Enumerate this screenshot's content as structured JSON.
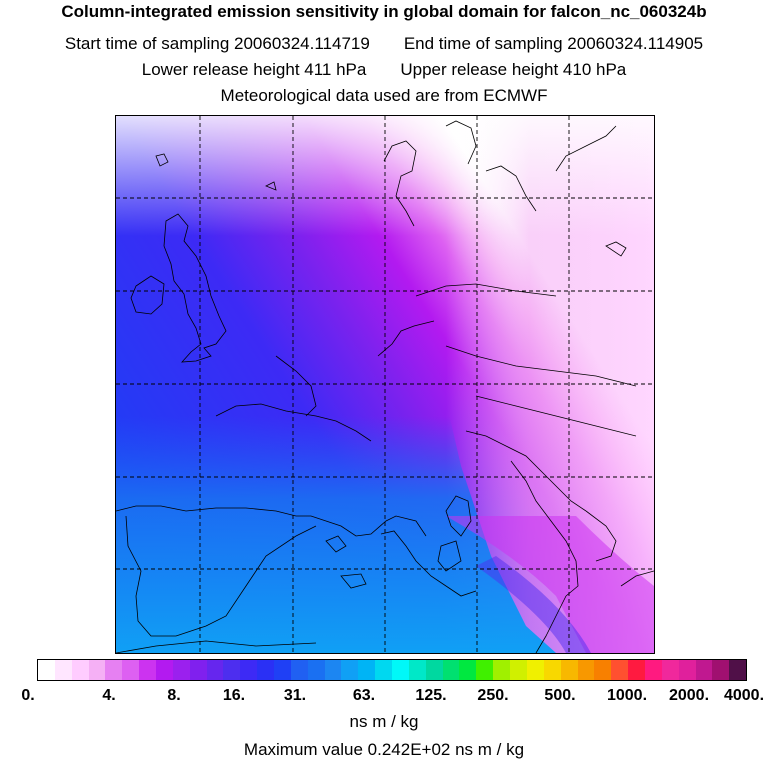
{
  "header": {
    "title": "Column-integrated emission sensitivity in global domain for falcon_nc_060324b",
    "start_label": "Start time of sampling 20060324.114719",
    "end_label": "End time of sampling 20060324.114905",
    "lower_label": "Lower release height  411 hPa",
    "upper_label": "Upper release height  410 hPa",
    "met_label": "Meteorological data used are from ECMWF"
  },
  "colorbar": {
    "colors": [
      "#ffffff",
      "#ffe6ff",
      "#ffccff",
      "#f5b0f5",
      "#e680f2",
      "#dd60f2",
      "#cc33f0",
      "#b31af0",
      "#9b20ee",
      "#8020ee",
      "#6626ee",
      "#4d2eef",
      "#3d2af5",
      "#2a30f5",
      "#1f40f5",
      "#2060f2",
      "#1a70f2",
      "#1c86f2",
      "#10a0f5",
      "#00b4f5",
      "#00d8f0",
      "#00f8f8",
      "#00e8c8",
      "#00d8a0",
      "#00e070",
      "#00e840",
      "#40f000",
      "#a0f000",
      "#d0f000",
      "#f0f000",
      "#f8d800",
      "#f8b800",
      "#f89800",
      "#f88000",
      "#ff5030",
      "#ff1a40",
      "#ff1a80",
      "#f0289c",
      "#e0209c",
      "#c01890",
      "#a01070",
      "#501048"
    ],
    "tick_labels": [
      "0.",
      "4.",
      "8.",
      "16.",
      "31.",
      "63.",
      "125.",
      "250.",
      "500.",
      "1000.",
      "2000.",
      "4000."
    ],
    "units": "ns m / kg"
  },
  "footer": {
    "max_value": "Maximum value  0.242E+02 ns m / kg"
  }
}
